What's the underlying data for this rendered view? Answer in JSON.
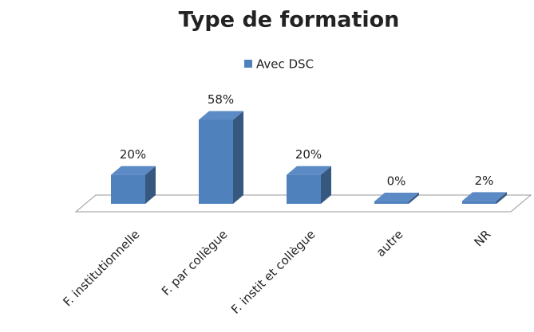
{
  "chart_data": {
    "type": "bar",
    "title": "Type de formation",
    "categories": [
      "F. institutionnelle",
      "F. par collègue",
      "F. instit et collègue",
      "autre",
      "NR"
    ],
    "series": [
      {
        "name": "Avec DSC",
        "color": "#4f81bd",
        "values": [
          20,
          58,
          20,
          0,
          2
        ],
        "value_labels": [
          "20%",
          "58%",
          "20%",
          "0%",
          "2%"
        ]
      }
    ]
  }
}
